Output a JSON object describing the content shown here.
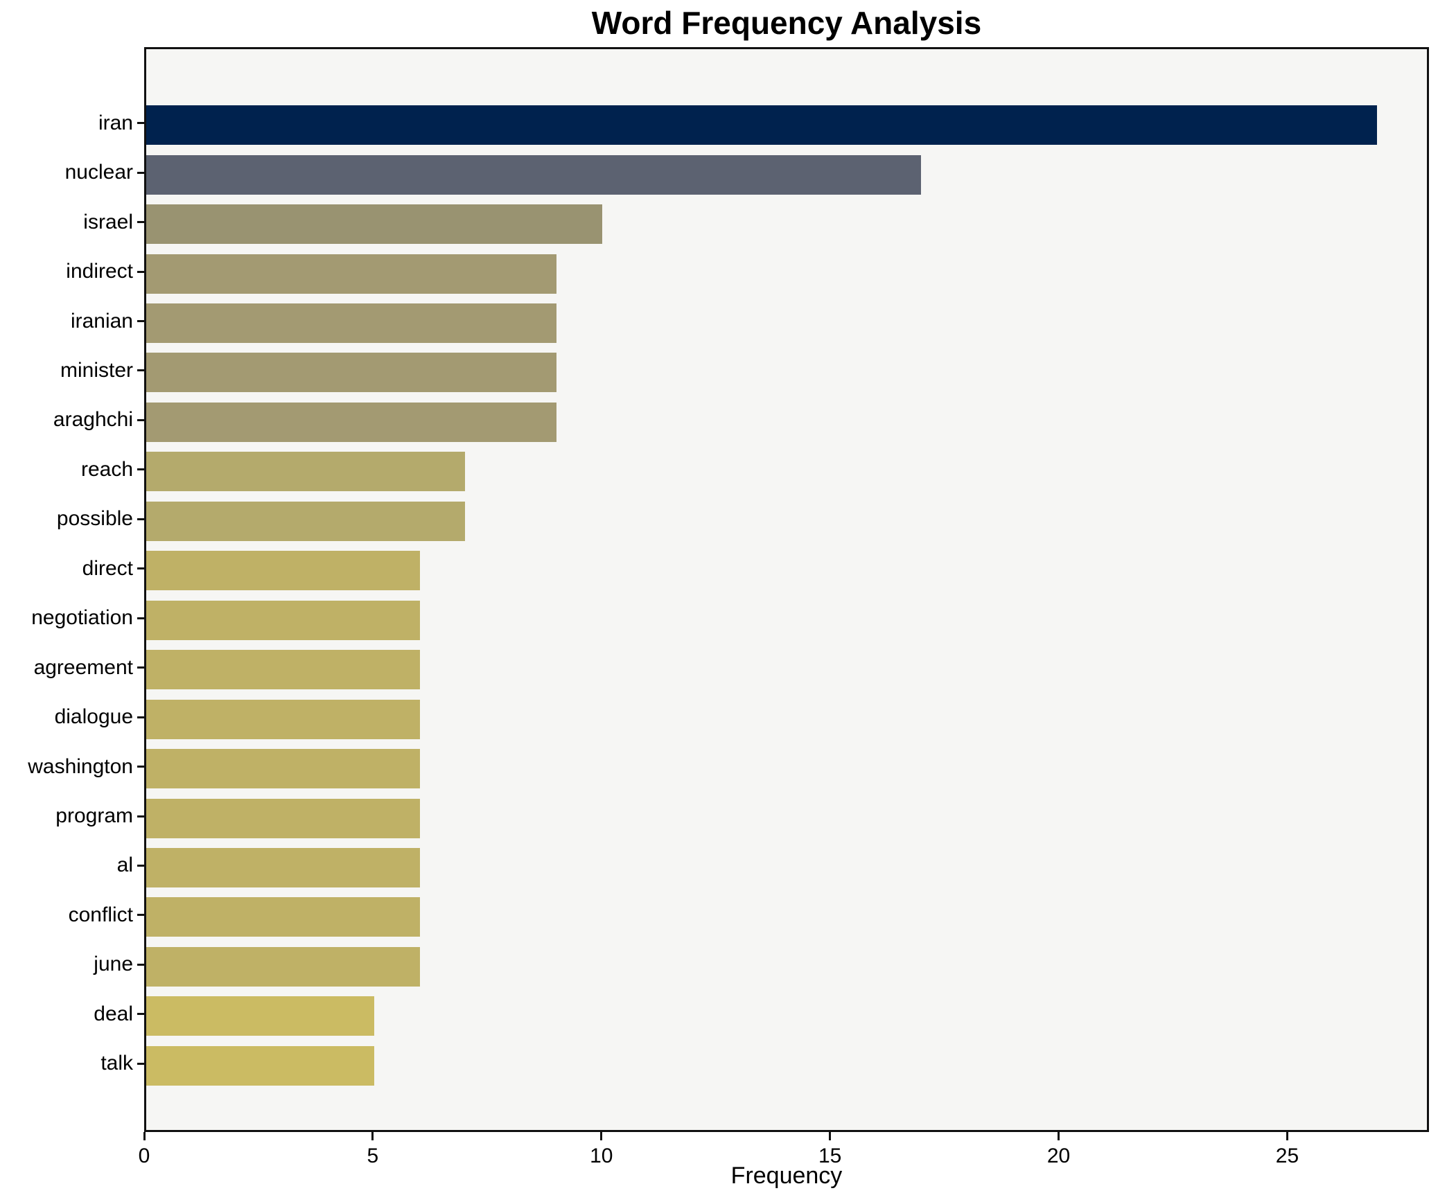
{
  "chart_data": {
    "type": "bar",
    "orientation": "horizontal",
    "title": "Word Frequency Analysis",
    "xlabel": "Frequency",
    "ylabel": "",
    "xlim": [
      0,
      28.1
    ],
    "xticks": [
      0,
      5,
      10,
      15,
      20,
      25
    ],
    "grid": false,
    "legend": "none",
    "categories": [
      "iran",
      "nuclear",
      "israel",
      "indirect",
      "iranian",
      "minister",
      "araghchi",
      "reach",
      "possible",
      "direct",
      "negotiation",
      "agreement",
      "dialogue",
      "washington",
      "program",
      "al",
      "conflict",
      "june",
      "deal",
      "talk"
    ],
    "values": [
      27,
      17,
      10,
      9,
      9,
      9,
      9,
      7,
      7,
      6,
      6,
      6,
      6,
      6,
      6,
      6,
      6,
      6,
      5,
      5
    ],
    "bar_colors": [
      "#00224e",
      "#5c6271",
      "#999371",
      "#a39a72",
      "#a39a72",
      "#a39a72",
      "#a39a72",
      "#b4aa6c",
      "#b4aa6c",
      "#bfb166",
      "#bfb166",
      "#bfb166",
      "#bfb166",
      "#bfb166",
      "#bfb166",
      "#bfb166",
      "#bfb166",
      "#bfb166",
      "#cbbb63",
      "#cbbb63"
    ],
    "colormap": "cividis-reversed",
    "plot_background": "#f6f6f4",
    "figure_background": "#ffffff",
    "frame_color": "#111111",
    "text_color": "#000000"
  }
}
